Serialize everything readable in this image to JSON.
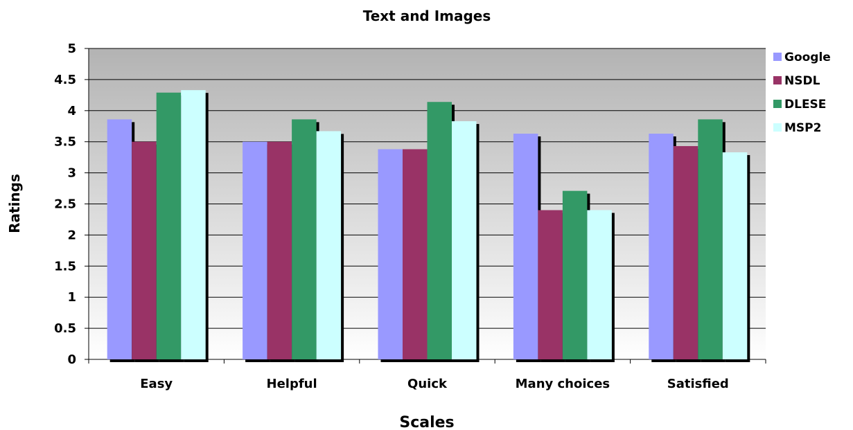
{
  "chart_data": {
    "type": "bar",
    "title": "Text and Images",
    "xlabel": "Scales",
    "ylabel": "Ratings",
    "categories": [
      "Easy",
      "Helpful",
      "Quick",
      "Many choices",
      "Satisfied"
    ],
    "ylim": [
      0,
      5
    ],
    "yticks": [
      0,
      0.5,
      1,
      1.5,
      2,
      2.5,
      3,
      3.5,
      4,
      4.5,
      5
    ],
    "ytick_labels": [
      "0",
      "0.5",
      "1",
      "1.5",
      "2",
      "2.5",
      "3",
      "3.5",
      "4",
      "4.5",
      "5"
    ],
    "grid": true,
    "legend_position": "right",
    "series": [
      {
        "name": "Google",
        "color": "#9999ff",
        "values": [
          3.86,
          3.5,
          3.38,
          3.63,
          3.63
        ]
      },
      {
        "name": "NSDL",
        "color": "#993366",
        "values": [
          3.5,
          3.5,
          3.38,
          2.4,
          3.43
        ]
      },
      {
        "name": "DLESE",
        "color": "#339966",
        "values": [
          4.29,
          3.86,
          4.14,
          2.71,
          3.86
        ]
      },
      {
        "name": "MSP2",
        "color": "#ccffff",
        "values": [
          4.33,
          3.67,
          3.83,
          2.4,
          3.33
        ]
      }
    ]
  }
}
